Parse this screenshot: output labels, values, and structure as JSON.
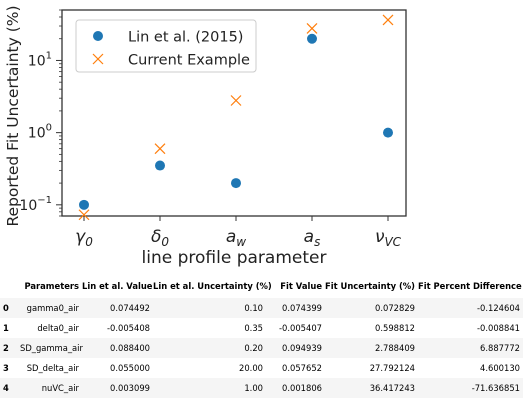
{
  "chart_data": {
    "type": "scatter",
    "xlabel": "line profile parameter",
    "ylabel": "Reported Fit Uncertainty (%)",
    "yscale": "log",
    "ylim": [
      0.07,
      50
    ],
    "categories": [
      "γ0",
      "δ0",
      "aw",
      "as",
      "νVC"
    ],
    "y_tick_labels": [
      {
        "value": 0.1,
        "base": "10",
        "exp": "−1"
      },
      {
        "value": 1,
        "base": "10",
        "exp": "0"
      },
      {
        "value": 10,
        "base": "10",
        "exp": "1"
      }
    ],
    "legend_position": "upper-left",
    "series": [
      {
        "name": "Lin et al. (2015)",
        "marker": "circle",
        "color": "#1f77b4",
        "values": [
          0.1,
          0.35,
          0.2,
          20.0,
          1.0
        ]
      },
      {
        "name": "Current Example",
        "marker": "x",
        "color": "#ff7f0e",
        "values": [
          0.072829,
          0.598812,
          2.788409,
          27.792124,
          36.417243
        ]
      }
    ]
  },
  "table": {
    "columns": [
      "",
      "Parameters",
      "Lin et al. Value",
      "Lin et al. Uncertainty (%)",
      "Fit Value",
      "Fit Uncertainty (%)",
      "Fit Percent Difference (%)"
    ],
    "rows": [
      [
        "0",
        "gamma0_air",
        "0.074492",
        "0.10",
        "0.074399",
        "0.072829",
        "-0.124604"
      ],
      [
        "1",
        "delta0_air",
        "-0.005408",
        "0.35",
        "-0.005407",
        "0.598812",
        "-0.008841"
      ],
      [
        "2",
        "SD_gamma_air",
        "0.088400",
        "0.20",
        "0.094939",
        "2.788409",
        "6.887772"
      ],
      [
        "3",
        "SD_delta_air",
        "0.055000",
        "20.00",
        "0.057652",
        "27.792124",
        "4.600130"
      ],
      [
        "4",
        "nuVC_air",
        "0.003099",
        "1.00",
        "0.001806",
        "36.417243",
        "-71.636851"
      ]
    ]
  }
}
